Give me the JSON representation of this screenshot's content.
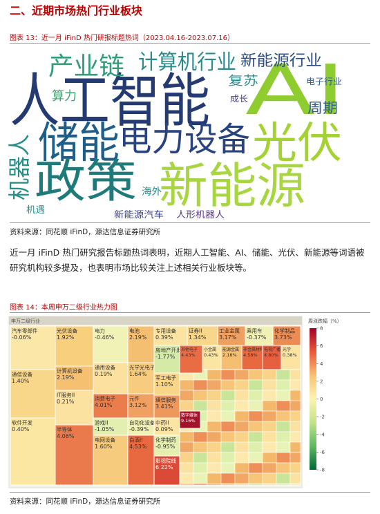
{
  "heading": "二、近期市场热门行业板块",
  "figure13": {
    "caption": "图表 13：近一月 iFinD 热门研报标题热词（2023.04.16-2023.07.16）",
    "words": [
      {
        "text": "人工智能",
        "color": "#243a72"
      },
      {
        "text": "AI",
        "color": "#8fcc2f"
      },
      {
        "text": "储能",
        "color": "#1f5e8a"
      },
      {
        "text": "电力设备",
        "color": "#28437f"
      },
      {
        "text": "光伏",
        "color": "#a4d233"
      },
      {
        "text": "政策",
        "color": "#1f7a7a"
      },
      {
        "text": "新能源",
        "color": "#a8d640"
      },
      {
        "text": "产业链",
        "color": "#2f9e78"
      },
      {
        "text": "计算机行业",
        "color": "#2b8c8a"
      },
      {
        "text": "新能源行业",
        "color": "#2d4d85"
      },
      {
        "text": "复苏",
        "color": "#2a8e8a"
      },
      {
        "text": "电子行业",
        "color": "#2e5b94"
      },
      {
        "text": "算力",
        "color": "#3aa36e"
      },
      {
        "text": "成长",
        "color": "#4a3b80"
      },
      {
        "text": "周期",
        "color": "#2f5e93"
      },
      {
        "text": "海外",
        "color": "#2a8a88"
      },
      {
        "text": "机遇",
        "color": "#2b8a86"
      },
      {
        "text": "新能源汽车",
        "color": "#3b3f86"
      },
      {
        "text": "人形机器人",
        "color": "#5a3a8a"
      },
      {
        "text": "机器人",
        "color": "#2a8e88"
      }
    ],
    "source": "资料来源：同花顺 iFinD，源达信息证券研究所"
  },
  "paragraph": "近一月 iFinD 热门研究报告标题热词表明，近期人工智能、AI、储能、光伏、新能源等词语被研究机构较多提及，也表明市场比较关注上述相关行业板块等。",
  "figure14": {
    "caption": "图表 14：本周申万二级行业热力图",
    "header": "申万二级行业",
    "cells": [
      {
        "name": "汽车零部件",
        "value": "-0.06%",
        "color": "#fbe7a8"
      },
      {
        "name": "通信设备",
        "value": "1.40%",
        "color": "#f8d78a"
      },
      {
        "name": "软件开发",
        "value": "0.40%",
        "color": "#fbe6a2"
      },
      {
        "name": "光伏设备",
        "value": "1.92%",
        "color": "#f8cf7d"
      },
      {
        "name": "计算机设备",
        "value": "2.19%",
        "color": "#f5c070"
      },
      {
        "name": "IT服务II",
        "value": "0.21%",
        "color": "#fbe2a0"
      },
      {
        "name": "半导体",
        "value": "4.06%",
        "color": "#ea7a4b"
      },
      {
        "name": "电力",
        "value": "-0.46%",
        "color": "#f1f2b5"
      },
      {
        "name": "通用设备",
        "value": "0.19%",
        "color": "#fbe0a0"
      },
      {
        "name": "消费电子",
        "value": "4.01%",
        "color": "#eb7d4c"
      },
      {
        "name": "游戏II",
        "value": "-1.05%",
        "color": "#e3efb0"
      },
      {
        "name": "电网设备",
        "value": "1.60%",
        "color": "#f6cb7e"
      },
      {
        "name": "电池",
        "value": "2.19%",
        "color": "#f4bf70"
      },
      {
        "name": "光学光电子",
        "value": "1.64%",
        "color": "#f7cc7e"
      },
      {
        "name": "元件",
        "value": "3.12%",
        "color": "#f0a161"
      },
      {
        "name": "自动化设备",
        "value": "-0.39%",
        "color": "#f1f1b4"
      },
      {
        "name": "白酒II",
        "value": "4.53%",
        "color": "#e8683f"
      },
      {
        "name": "专用设备",
        "value": "0.39%",
        "color": "#fbe3a2"
      },
      {
        "name": "房地产开发",
        "value": "-1.77%",
        "color": "#d6eaa8"
      },
      {
        "name": "军工电子",
        "value": "1.10%",
        "color": "#f9d58a"
      },
      {
        "name": "通信服务",
        "value": "3.41%",
        "color": "#ee985b"
      },
      {
        "name": "中药II",
        "value": "0.09%",
        "color": "#fce5a4"
      },
      {
        "name": "化学制药",
        "value": "-0.95%",
        "color": "#e4efb0"
      },
      {
        "name": "影视院线",
        "value": "6.22%",
        "color": "#db4a36"
      },
      {
        "name": "证券II",
        "value": "1.34%",
        "color": "#f8d68a"
      },
      {
        "name": "其他电子",
        "value": "4.43%",
        "color": "#e96d44"
      },
      {
        "name": "工业金属",
        "value": "3.17%",
        "color": "#ef9f60"
      },
      {
        "name": "乘用车",
        "value": "-0.37%",
        "color": "#f1f1b4"
      },
      {
        "name": "化学制品",
        "value": "3.73%",
        "color": "#ec8c55"
      },
      {
        "name": "小金属",
        "value": "0.43%",
        "color": "#fbe5a2"
      },
      {
        "name": "能源金属",
        "value": "2.18%",
        "color": "#f4bf70"
      },
      {
        "name": "非金属材料",
        "value": "4.58%",
        "color": "#e8683f"
      },
      {
        "name": "电视广播",
        "value": "4.80%",
        "color": "#e66040"
      },
      {
        "name": "光学",
        "value": "0.38%",
        "color": "#fbe3a2"
      },
      {
        "name": "数字媒体",
        "value": "9.16%",
        "color": "#a3122a"
      }
    ],
    "legend": {
      "title": "周涨跌幅（%）",
      "ticks": [
        8,
        6,
        4,
        2,
        0,
        -2,
        -4,
        -6,
        -8
      ],
      "colors": [
        "#a50026",
        "#e8593a",
        "#f8c276",
        "#fdf3b0",
        "#c2e28c",
        "#5fb862",
        "#006837"
      ]
    },
    "source": "资料来源：同花顺 iFinD，源达信息证券研究所"
  }
}
